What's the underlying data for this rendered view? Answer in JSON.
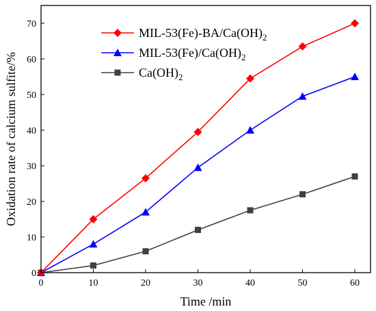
{
  "chart_data": {
    "type": "line",
    "title": "",
    "xlabel": "Time /min",
    "ylabel": "Oxidation rate of calcium sulfite/%",
    "x": [
      0,
      10,
      20,
      30,
      40,
      50,
      60
    ],
    "xlim": [
      0,
      63
    ],
    "ylim": [
      0,
      75
    ],
    "xticks": [
      0,
      10,
      20,
      30,
      40,
      50,
      60
    ],
    "yticks": [
      0,
      10,
      20,
      30,
      40,
      50,
      60,
      70
    ],
    "grid": false,
    "legend_position": "top-left",
    "series": [
      {
        "name": "MIL-53(Fe)-BA/Ca(OH)",
        "name_subscript": "2",
        "color": "#ff0000",
        "marker": "diamond",
        "values": [
          0,
          15,
          26.5,
          39.5,
          54.5,
          63.5,
          70
        ]
      },
      {
        "name": "MIL-53(Fe)/Ca(OH)",
        "name_subscript": "2",
        "color": "#0000ff",
        "marker": "triangle",
        "values": [
          0,
          8,
          17,
          29.5,
          40,
          49.5,
          55
        ]
      },
      {
        "name": "Ca(OH)",
        "name_subscript": "2",
        "color": "#404040",
        "marker": "square",
        "values": [
          0,
          2,
          6,
          12,
          17.5,
          22,
          27
        ]
      }
    ]
  }
}
